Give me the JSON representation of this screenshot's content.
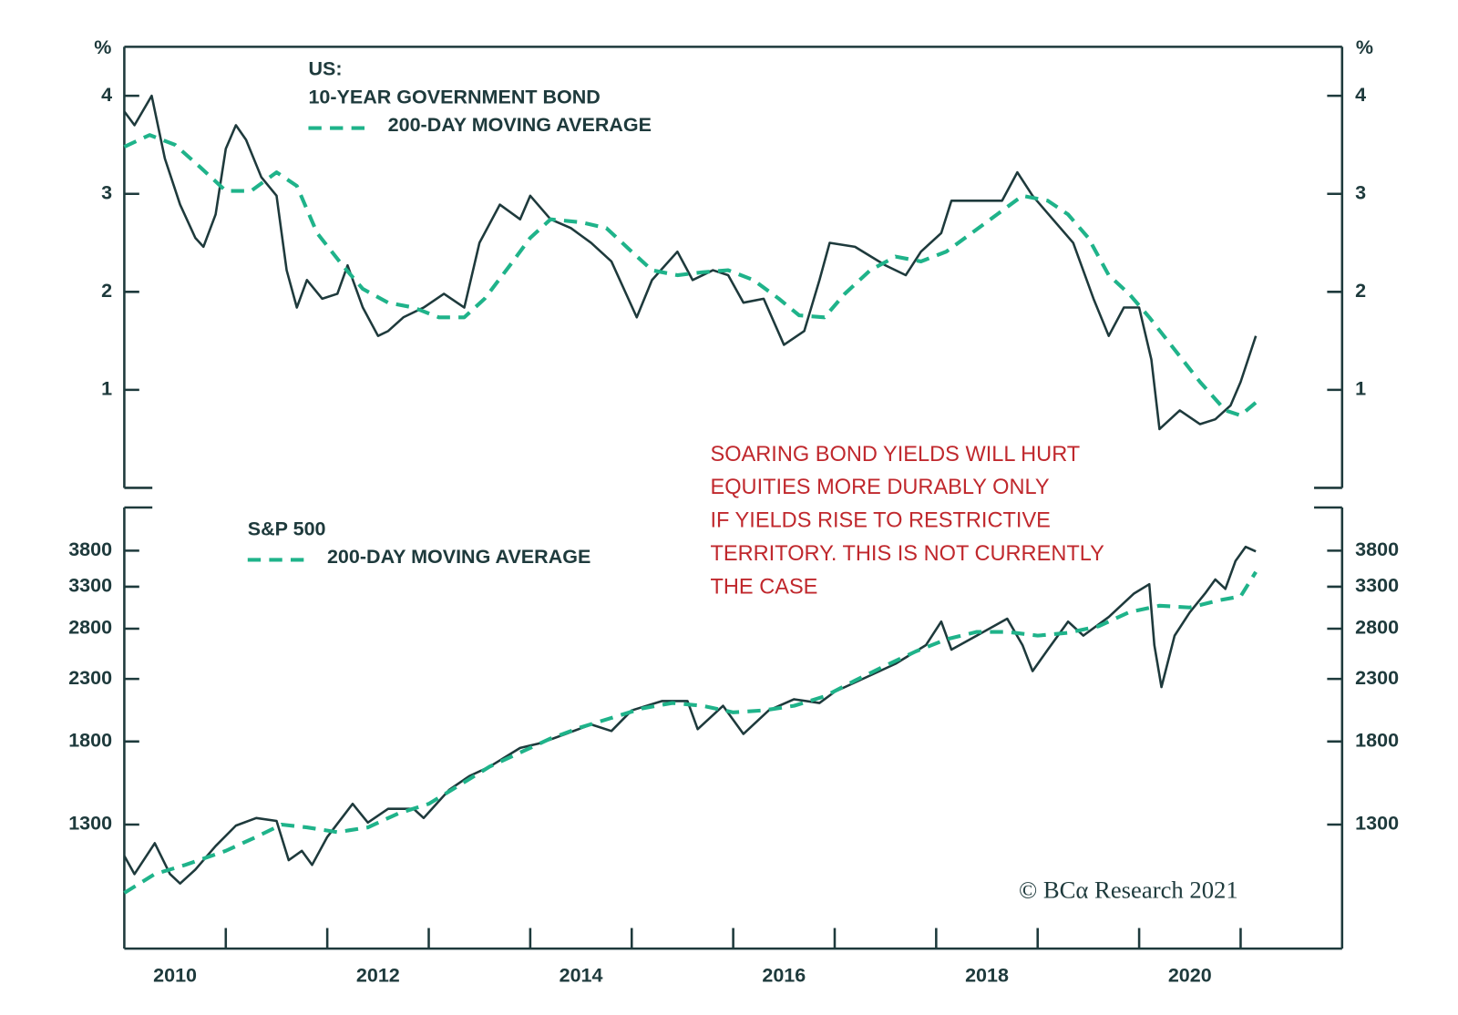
{
  "chart_data": [
    {
      "type": "line",
      "heading": "US:",
      "y_unit": "%",
      "xlim": [
        2010,
        2022
      ],
      "ylim": [
        0,
        4.5
      ],
      "yticks": [
        1,
        2,
        3,
        4
      ],
      "series": [
        {
          "name": "10-YEAR GOVERNMENT BOND",
          "color": "#1e3a3c",
          "style": "solid",
          "x": [
            2010.0,
            2010.1,
            2010.27,
            2010.4,
            2010.55,
            2010.7,
            2010.78,
            2010.9,
            2011.0,
            2011.1,
            2011.2,
            2011.35,
            2011.5,
            2011.6,
            2011.7,
            2011.8,
            2011.95,
            2012.1,
            2012.2,
            2012.35,
            2012.5,
            2012.6,
            2012.75,
            2012.95,
            2013.15,
            2013.35,
            2013.5,
            2013.7,
            2013.9,
            2014.0,
            2014.2,
            2014.4,
            2014.6,
            2014.8,
            2015.05,
            2015.2,
            2015.45,
            2015.6,
            2015.8,
            2015.95,
            2016.1,
            2016.3,
            2016.5,
            2016.7,
            2016.85,
            2016.95,
            2017.2,
            2017.5,
            2017.7,
            2017.85,
            2018.05,
            2018.15,
            2018.4,
            2018.65,
            2018.8,
            2018.95,
            2019.15,
            2019.35,
            2019.55,
            2019.7,
            2019.85,
            2020.0,
            2020.12,
            2020.2,
            2020.4,
            2020.6,
            2020.75,
            2020.9,
            2021.0,
            2021.15
          ],
          "values": [
            3.84,
            3.7,
            4.0,
            3.36,
            2.89,
            2.55,
            2.46,
            2.79,
            3.46,
            3.7,
            3.55,
            3.17,
            2.98,
            2.22,
            1.84,
            2.12,
            1.93,
            1.98,
            2.27,
            1.84,
            1.55,
            1.6,
            1.74,
            1.84,
            1.98,
            1.84,
            2.5,
            2.89,
            2.74,
            2.98,
            2.74,
            2.65,
            2.5,
            2.31,
            1.74,
            2.12,
            2.41,
            2.12,
            2.22,
            2.17,
            1.89,
            1.93,
            1.46,
            1.6,
            2.12,
            2.5,
            2.46,
            2.27,
            2.17,
            2.41,
            2.6,
            2.93,
            2.93,
            2.93,
            3.22,
            2.98,
            2.74,
            2.5,
            1.93,
            1.55,
            1.84,
            1.84,
            1.31,
            0.6,
            0.79,
            0.65,
            0.7,
            0.84,
            1.08,
            1.55
          ]
        },
        {
          "name": "200-DAY MOVING AVERAGE",
          "color": "#1fb38a",
          "style": "dashed",
          "x": [
            2010.0,
            2010.25,
            2010.5,
            2010.75,
            2011.0,
            2011.25,
            2011.5,
            2011.7,
            2011.9,
            2012.15,
            2012.35,
            2012.6,
            2012.85,
            2013.1,
            2013.35,
            2013.55,
            2013.8,
            2014.0,
            2014.2,
            2014.5,
            2014.75,
            2015.0,
            2015.2,
            2015.45,
            2015.7,
            2015.95,
            2016.2,
            2016.45,
            2016.65,
            2016.9,
            2017.1,
            2017.35,
            2017.6,
            2017.85,
            2018.1,
            2018.35,
            2018.6,
            2018.85,
            2019.1,
            2019.3,
            2019.5,
            2019.7,
            2019.9,
            2020.1,
            2020.35,
            2020.6,
            2020.85,
            2021.0,
            2021.15
          ],
          "values": [
            3.48,
            3.6,
            3.5,
            3.27,
            3.03,
            3.03,
            3.22,
            3.08,
            2.6,
            2.27,
            2.03,
            1.89,
            1.84,
            1.74,
            1.74,
            1.93,
            2.27,
            2.55,
            2.74,
            2.71,
            2.65,
            2.41,
            2.22,
            2.17,
            2.2,
            2.22,
            2.12,
            1.93,
            1.76,
            1.74,
            1.98,
            2.22,
            2.36,
            2.31,
            2.41,
            2.6,
            2.79,
            2.98,
            2.93,
            2.79,
            2.55,
            2.17,
            1.98,
            1.74,
            1.41,
            1.08,
            0.79,
            0.74,
            0.87
          ]
        }
      ]
    },
    {
      "type": "line",
      "log_scale": true,
      "xlim": [
        2010,
        2022
      ],
      "xticks": [
        {
          "value": 2010.5,
          "label": "2010"
        },
        {
          "value": 2012.5,
          "label": "2012"
        },
        {
          "value": 2014.5,
          "label": "2014"
        },
        {
          "value": 2016.5,
          "label": "2016"
        },
        {
          "value": 2018.5,
          "label": "2018"
        },
        {
          "value": 2020.5,
          "label": "2020"
        }
      ],
      "xminorticks": [
        2011,
        2012,
        2013,
        2014,
        2015,
        2016,
        2017,
        2018,
        2019,
        2020,
        2021
      ],
      "ylim": [
        800,
        4500
      ],
      "yticks": [
        1300,
        1800,
        2300,
        2800,
        3300,
        3800
      ],
      "annotation": [
        "SOARING BOND YIELDS WILL HURT",
        "EQUITIES MORE DURABLY ONLY",
        "IF YIELDS RISE TO RESTRICTIVE",
        "TERRITORY. THIS IS NOT CURRENTLY",
        "THE CASE"
      ],
      "source": "© BCα Research 2021",
      "series": [
        {
          "name": "S&P 500",
          "color": "#1e3a3c",
          "style": "solid",
          "x": [
            2010.0,
            2010.1,
            2010.3,
            2010.45,
            2010.55,
            2010.7,
            2010.9,
            2011.1,
            2011.3,
            2011.5,
            2011.62,
            2011.75,
            2011.85,
            2012.0,
            2012.25,
            2012.4,
            2012.6,
            2012.85,
            2012.95,
            2013.2,
            2013.4,
            2013.6,
            2013.9,
            2014.1,
            2014.35,
            2014.6,
            2014.8,
            2015.0,
            2015.3,
            2015.55,
            2015.65,
            2015.9,
            2016.1,
            2016.35,
            2016.6,
            2016.85,
            2017.0,
            2017.3,
            2017.6,
            2017.9,
            2018.05,
            2018.15,
            2018.4,
            2018.7,
            2018.85,
            2018.95,
            2019.1,
            2019.3,
            2019.45,
            2019.7,
            2019.95,
            2020.1,
            2020.15,
            2020.22,
            2020.35,
            2020.5,
            2020.65,
            2020.75,
            2020.85,
            2020.95,
            2021.05,
            2021.15
          ],
          "values": [
            1150,
            1071,
            1209,
            1071,
            1032,
            1090,
            1195,
            1295,
            1334,
            1319,
            1131,
            1173,
            1110,
            1239,
            1410,
            1310,
            1383,
            1383,
            1334,
            1489,
            1572,
            1631,
            1755,
            1788,
            1854,
            1924,
            1875,
            2033,
            2109,
            2109,
            1889,
            2070,
            1854,
            2033,
            2124,
            2093,
            2187,
            2310,
            2441,
            2626,
            2878,
            2579,
            2725,
            2911,
            2626,
            2371,
            2579,
            2878,
            2725,
            2931,
            3214,
            3332,
            2626,
            2227,
            2725,
            2986,
            3214,
            3395,
            3272,
            3652,
            3858,
            3789
          ]
        },
        {
          "name": "200-DAY MOVING AVERAGE",
          "color": "#1fb38a",
          "style": "dashed",
          "x": [
            2010.0,
            2010.3,
            2010.6,
            2011.0,
            2011.3,
            2011.55,
            2011.8,
            2012.1,
            2012.4,
            2012.7,
            2013.0,
            2013.3,
            2013.6,
            2013.9,
            2014.2,
            2014.5,
            2014.8,
            2015.1,
            2015.4,
            2015.7,
            2016.0,
            2016.3,
            2016.6,
            2016.9,
            2017.2,
            2017.5,
            2017.8,
            2018.1,
            2018.4,
            2018.7,
            2019.0,
            2019.3,
            2019.6,
            2019.9,
            2020.2,
            2020.5,
            2020.8,
            2021.0,
            2021.15
          ],
          "values": [
            995,
            1071,
            1110,
            1173,
            1239,
            1300,
            1286,
            1262,
            1286,
            1358,
            1410,
            1516,
            1631,
            1724,
            1821,
            1903,
            1974,
            2048,
            2093,
            2070,
            2018,
            2033,
            2070,
            2148,
            2285,
            2423,
            2561,
            2685,
            2765,
            2765,
            2725,
            2755,
            2826,
            2986,
            3063,
            3042,
            3132,
            3177,
            3496
          ]
        }
      ]
    }
  ]
}
